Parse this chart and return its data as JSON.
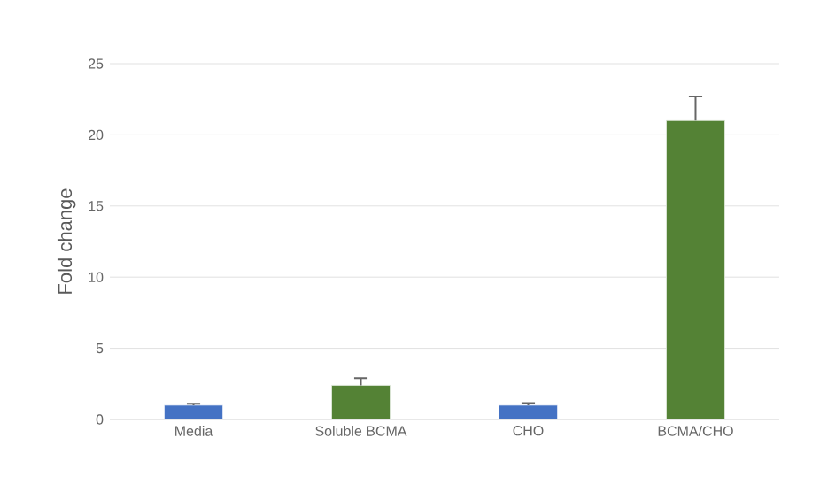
{
  "chart_data": {
    "type": "bar",
    "ylabel": "Fold change",
    "categories": [
      "Media",
      "Soluble BCMA",
      "CHO",
      "BCMA/CHO"
    ],
    "values": [
      1.0,
      2.4,
      1.0,
      21.0
    ],
    "errors": [
      [
        1.0,
        1.1
      ],
      [
        2.4,
        2.9
      ],
      [
        1.0,
        1.15
      ],
      [
        21.0,
        22.7
      ]
    ],
    "colors": [
      "#4472c4",
      "#548235",
      "#4472c4",
      "#548235"
    ],
    "ylim": [
      0,
      25
    ],
    "yticks": [
      0,
      5,
      10,
      15,
      20,
      25
    ],
    "grid": "y"
  }
}
